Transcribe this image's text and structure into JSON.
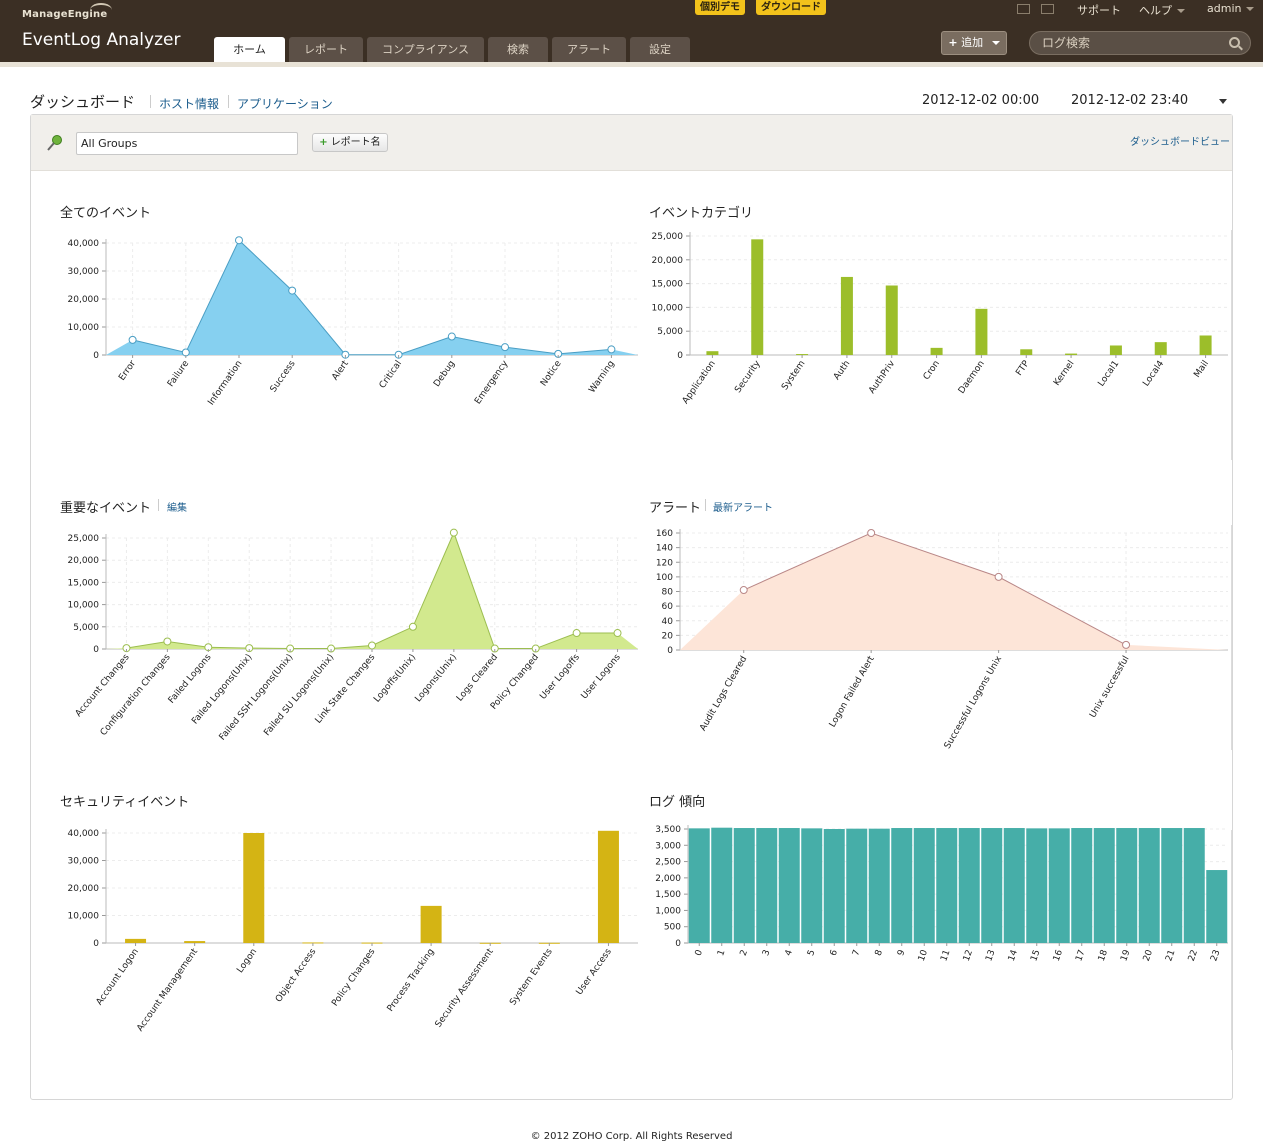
{
  "header": {
    "brand_small": "ManageEngine",
    "brand_name": "EventLog Analyzer",
    "badges": [
      "個別デモ",
      "ダウンロード"
    ],
    "tabs": [
      "ホーム",
      "レポート",
      "コンプライアンス",
      "検索",
      "アラート",
      "設定"
    ],
    "active_tab": 0,
    "top_links": {
      "support": "サポート",
      "help": "ヘルプ",
      "user": "admin"
    },
    "add_button": "追加",
    "search_placeholder": "ログ検索"
  },
  "page": {
    "title": "ダッシュボード",
    "subnav": [
      "ホスト情報",
      "アプリケーション"
    ],
    "date_from": "2012-12-02 00:00",
    "date_to": "2012-12-02 23:40"
  },
  "toolbar": {
    "group": "All Groups",
    "report_button": "レポート名",
    "dashboard_view": "ダッシュボードビュー"
  },
  "widgets": {
    "all_events": {
      "title": "全てのイベント"
    },
    "event_category": {
      "title": "イベントカテゴリ"
    },
    "important_events": {
      "title": "重要なイベント",
      "link": "編集"
    },
    "alerts": {
      "title": "アラート",
      "link": "最新アラート"
    },
    "security_events": {
      "title": "セキュリティイベント"
    },
    "log_trend": {
      "title": "ログ 傾向"
    }
  },
  "chart_data": [
    {
      "id": "all_events",
      "type": "area",
      "categories": [
        "Error",
        "Failure",
        "Information",
        "Success",
        "Alert",
        "Critical",
        "Debug",
        "Emergency",
        "Notice",
        "Warning"
      ],
      "values": [
        5400,
        900,
        41000,
        23000,
        100,
        100,
        6600,
        2800,
        400,
        2000
      ],
      "ylim": [
        0,
        40000
      ],
      "yticks": [
        "0",
        "10,000",
        "20,000",
        "30,000",
        "40,000"
      ],
      "color": "#86d0f0",
      "stroke": "#4a9ec4"
    },
    {
      "id": "event_category",
      "type": "bar",
      "categories": [
        "Application",
        "Security",
        "System",
        "Auth",
        "AuthPriv",
        "Cron",
        "Daemon",
        "FTP",
        "Kernel",
        "Local1",
        "Local4",
        "Mail"
      ],
      "values": [
        800,
        24300,
        200,
        16400,
        14600,
        1500,
        9700,
        1200,
        300,
        2000,
        2700,
        4100
      ],
      "ylim": [
        0,
        25000
      ],
      "yticks": [
        "0",
        "5,000",
        "10,000",
        "15,000",
        "20,000",
        "25,000"
      ],
      "color": "#9cbe2a"
    },
    {
      "id": "important_events",
      "type": "area",
      "categories": [
        "Account Changes",
        "Configuration Changes",
        "Failed Logons",
        "Failed Logons(Unix)",
        "Failed SSH Logons(Unix)",
        "Failed SU Logons(Unix)",
        "Link State Changes",
        "Logoffs(Unix)",
        "Logons(Unix)",
        "Logs Cleared",
        "Policy Changed",
        "User Logoffs",
        "User Logons"
      ],
      "values": [
        200,
        1700,
        400,
        200,
        100,
        100,
        800,
        5000,
        26200,
        100,
        100,
        3600,
        3600
      ],
      "ylim": [
        0,
        25000
      ],
      "yticks": [
        "0",
        "5,000",
        "10,000",
        "15,000",
        "20,000",
        "25,000"
      ],
      "color": "#d2e98e",
      "stroke": "#9cbe50"
    },
    {
      "id": "alerts",
      "type": "area",
      "categories": [
        "Audit Logs Cleared",
        "Logon Failed Alert",
        "Successful Logons Unix",
        "Unix successful"
      ],
      "values": [
        82,
        160,
        100,
        7
      ],
      "ylim": [
        0,
        160
      ],
      "yticks": [
        "0",
        "20",
        "40",
        "60",
        "80",
        "100",
        "120",
        "140",
        "160"
      ],
      "color": "#fde5d8",
      "stroke": "#b98787"
    },
    {
      "id": "security_events",
      "type": "bar",
      "categories": [
        "Account Logon",
        "Account Management",
        "Logon",
        "Object Access",
        "Policy Changes",
        "Process Tracking",
        "Security Assessment",
        "System Events",
        "User Access"
      ],
      "values": [
        1500,
        700,
        40000,
        200,
        150,
        13500,
        80,
        80,
        42000
      ],
      "ylim": [
        0,
        40000
      ],
      "yticks": [
        "0",
        "10,000",
        "20,000",
        "30,000",
        "40,000"
      ],
      "color": "#d4b414"
    },
    {
      "id": "log_trend",
      "type": "bar",
      "categories": [
        "0",
        "1",
        "2",
        "3",
        "4",
        "5",
        "6",
        "7",
        "8",
        "9",
        "10",
        "11",
        "12",
        "13",
        "14",
        "15",
        "16",
        "17",
        "18",
        "19",
        "20",
        "21",
        "22",
        "23"
      ],
      "values": [
        3520,
        3540,
        3530,
        3530,
        3530,
        3520,
        3500,
        3510,
        3510,
        3530,
        3530,
        3530,
        3530,
        3530,
        3530,
        3520,
        3520,
        3530,
        3530,
        3530,
        3530,
        3530,
        3530,
        2240
      ],
      "ylim": [
        0,
        3500
      ],
      "yticks": [
        "0",
        "500",
        "1,000",
        "1,500",
        "2,000",
        "2,500",
        "3,000",
        "3,500"
      ],
      "color": "#46aea8"
    }
  ],
  "footer": "© 2012 ZOHO Corp. All Rights Reserved"
}
